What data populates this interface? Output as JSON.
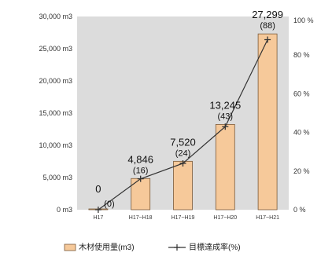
{
  "chart_data": {
    "type": "bar",
    "categories": [
      "H17",
      "H17~H18",
      "H17~H19",
      "H17~H20",
      "H17~H21"
    ],
    "series": [
      {
        "name": "木材使用量(m3)",
        "type": "bar",
        "axis": "left",
        "values": [
          0,
          4846,
          7520,
          13245,
          27299
        ],
        "labels": [
          "0",
          "4,846",
          "7,520",
          "13,245",
          "27,299"
        ]
      },
      {
        "name": "目標達成率(%)",
        "type": "line",
        "axis": "right",
        "values": [
          0,
          16,
          24,
          43,
          88
        ],
        "labels": [
          "(0)",
          "(16)",
          "(24)",
          "(43)",
          "(88)"
        ]
      }
    ],
    "y_left": {
      "lim": [
        0,
        30000
      ],
      "ticks": [
        0,
        5000,
        10000,
        15000,
        20000,
        25000,
        30000
      ],
      "tick_labels": [
        "0 m3",
        "5,000 m3",
        "10,000 m3",
        "15,000 m3",
        "20,000 m3",
        "25,000 m3",
        "30,000 m3"
      ]
    },
    "y_right": {
      "lim": [
        0,
        100
      ],
      "ticks": [
        0,
        20,
        40,
        60,
        80,
        100
      ],
      "tick_labels": [
        "0 %",
        "20 %",
        "40 %",
        "60 %",
        "80 %",
        "100 %"
      ]
    },
    "legend_position": "bottom",
    "colors": {
      "plot_bg": "#dcdcdc",
      "bar_fill": "#f6c99a",
      "bar_stroke": "#7a5a3a",
      "line": "#333333"
    }
  }
}
